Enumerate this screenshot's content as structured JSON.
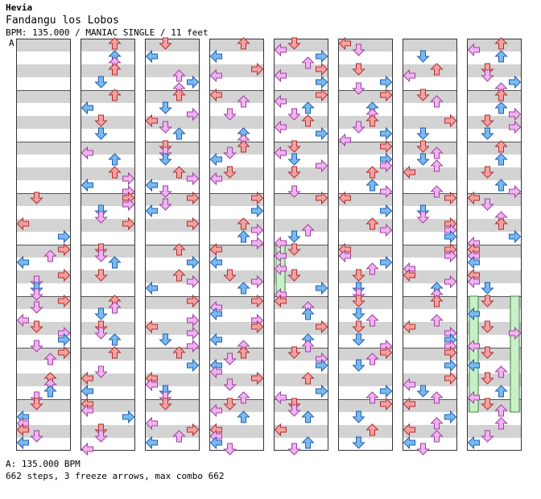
{
  "header": {
    "artist": "Hevia",
    "title": "Fandangu los Lobos",
    "info": "BPM: 135.000 / MANIAC SINGLE / 11 feet",
    "marker": "A"
  },
  "footer": {
    "bpm": "A: 135.000 BPM",
    "stats": "662 steps, 3 freeze arrows, max combo 662"
  },
  "colors": {
    "stripe": "#d3d3d3",
    "quarter": "#f5a0a0",
    "eighth": "#7ab9f0",
    "sixteenth": "#f0b4f0",
    "freeze": "#c8f0c8"
  },
  "chart": {
    "columns": 8,
    "measures_per_column": 8,
    "rows_per_measure": 16,
    "lanes": [
      "left",
      "down",
      "up",
      "right"
    ],
    "freezes": [
      {
        "column": 4,
        "lane": 0,
        "start_row": 64,
        "length_rows": 16
      },
      {
        "column": 7,
        "lane": 0,
        "start_row": 80,
        "length_rows": 36
      },
      {
        "column": 7,
        "lane": 3,
        "start_row": 80,
        "length_rows": 36
      }
    ]
  }
}
